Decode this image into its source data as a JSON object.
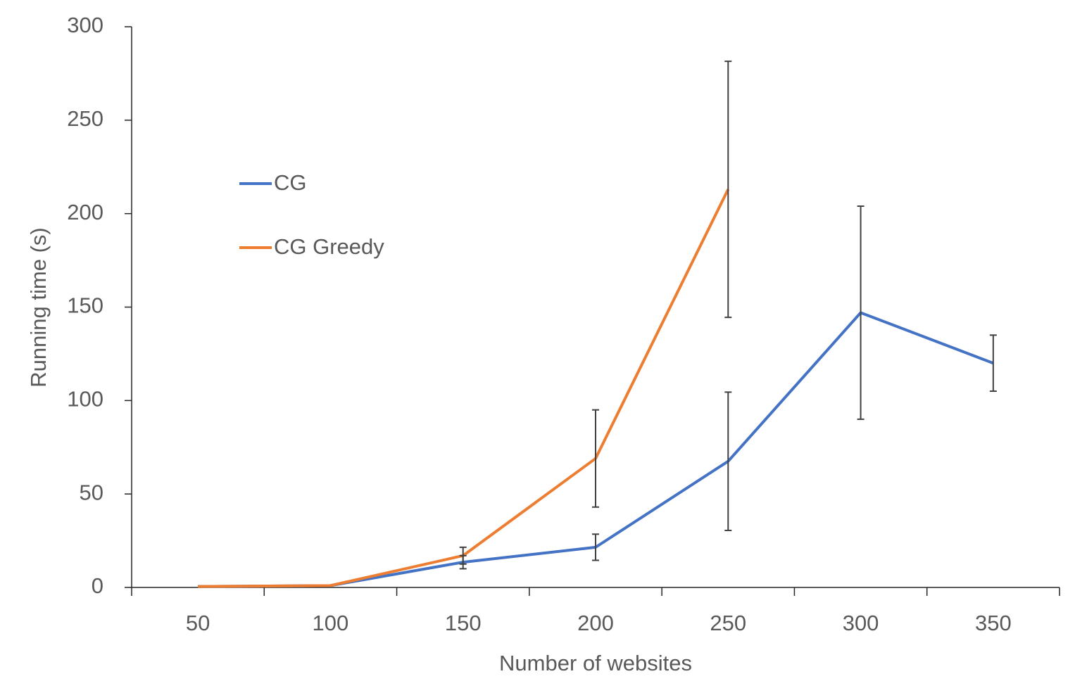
{
  "chart_data": {
    "type": "line",
    "x_label": "Number of websites",
    "y_label": "Running time (s)",
    "categories": [
      "50",
      "100",
      "150",
      "200",
      "250",
      "300",
      "350"
    ],
    "series": [
      {
        "name": "CG",
        "color": "#4472c4",
        "values": [
          0.5,
          1,
          13.5,
          21.5,
          67.5,
          147,
          120
        ],
        "errors": [
          null,
          null,
          3.5,
          7,
          37,
          57,
          15
        ]
      },
      {
        "name": "CG Greedy",
        "color": "#ed7d31",
        "values": [
          0.5,
          1,
          17,
          69,
          213,
          null,
          null
        ],
        "errors": [
          null,
          null,
          4.5,
          26,
          68.5,
          null,
          null
        ]
      }
    ],
    "ylim": [
      0,
      300
    ],
    "yticks": [
      0,
      50,
      100,
      150,
      200,
      250,
      300
    ],
    "grid": false,
    "legend": "upper left"
  }
}
